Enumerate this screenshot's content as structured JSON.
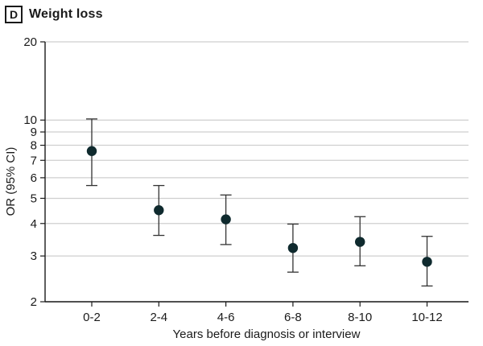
{
  "panel": {
    "letter": "D",
    "title": "Weight loss"
  },
  "chart_data": {
    "type": "scatter",
    "subtype": "point-with-error-bars",
    "title": "Weight loss",
    "xlabel": "Years before diagnosis or interview",
    "ylabel": "OR (95% CI)",
    "yscale": "log",
    "ylim": [
      2,
      20
    ],
    "yticks": [
      2,
      3,
      4,
      5,
      6,
      7,
      8,
      9,
      10,
      20
    ],
    "ytick_labels": [
      "2",
      "3",
      "4",
      "5",
      "6",
      "7",
      "8",
      "9",
      "10",
      "20"
    ],
    "grid": true,
    "categories": [
      "0-2",
      "2-4",
      "4-6",
      "6-8",
      "8-10",
      "10-12"
    ],
    "series": [
      {
        "name": "Weight loss",
        "values": [
          7.6,
          4.5,
          4.15,
          3.22,
          3.4,
          2.85
        ],
        "ci_lower": [
          5.6,
          3.6,
          3.32,
          2.6,
          2.75,
          2.3
        ],
        "ci_upper": [
          10.1,
          5.6,
          5.15,
          3.98,
          4.25,
          3.57
        ]
      }
    ]
  },
  "colors": {
    "marker": "#0f2a2e",
    "grid": "#cfcfcf",
    "axis": "#1a1a1a",
    "errorbar": "#333333"
  }
}
